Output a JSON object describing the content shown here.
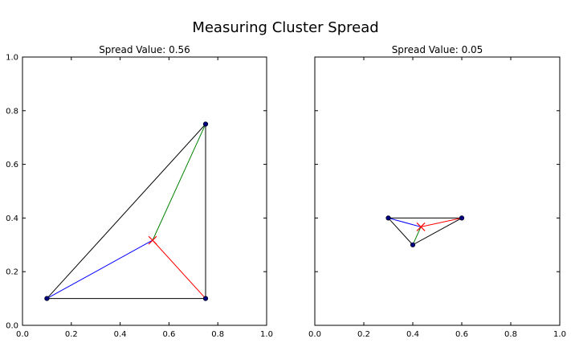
{
  "figure": {
    "title": "Measuring Cluster Spread"
  },
  "colors": {
    "triangle": "#000000",
    "line_a": "#0000ff",
    "line_b": "#008000",
    "line_c": "#ff0000",
    "centroid": "#ff0000",
    "points": "#000080"
  },
  "chart_data": [
    {
      "type": "scatter",
      "title": "Spread Value: 0.56",
      "xlabel": "",
      "ylabel": "",
      "xlim": [
        0,
        1
      ],
      "ylim": [
        0,
        1
      ],
      "xticks": [
        "0.0",
        "0.2",
        "0.4",
        "0.6",
        "0.8",
        "1.0"
      ],
      "yticks": [
        "0.0",
        "0.2",
        "0.4",
        "0.6",
        "0.8",
        "1.0"
      ],
      "show_ytick_labels": true,
      "points": [
        [
          0.1,
          0.1
        ],
        [
          0.75,
          0.1
        ],
        [
          0.75,
          0.75
        ]
      ],
      "centroid": [
        0.533,
        0.317
      ],
      "spokes": [
        {
          "from": [
            0.1,
            0.1
          ],
          "color": "#0000ff"
        },
        {
          "from": [
            0.75,
            0.75
          ],
          "color": "#008000"
        },
        {
          "from": [
            0.75,
            0.1
          ],
          "color": "#ff0000"
        }
      ]
    },
    {
      "type": "scatter",
      "title": "Spread Value: 0.05",
      "xlabel": "",
      "ylabel": "",
      "xlim": [
        0,
        1
      ],
      "ylim": [
        0,
        1
      ],
      "xticks": [
        "0.0",
        "0.2",
        "0.4",
        "0.6",
        "0.8",
        "1.0"
      ],
      "yticks": [
        "0.0",
        "0.2",
        "0.4",
        "0.6",
        "0.8",
        "1.0"
      ],
      "show_ytick_labels": false,
      "points": [
        [
          0.3,
          0.4
        ],
        [
          0.6,
          0.4
        ],
        [
          0.4,
          0.3
        ]
      ],
      "centroid": [
        0.433,
        0.367
      ],
      "spokes": [
        {
          "from": [
            0.3,
            0.4
          ],
          "color": "#0000ff"
        },
        {
          "from": [
            0.4,
            0.3
          ],
          "color": "#008000"
        },
        {
          "from": [
            0.6,
            0.4
          ],
          "color": "#ff0000"
        }
      ]
    }
  ]
}
